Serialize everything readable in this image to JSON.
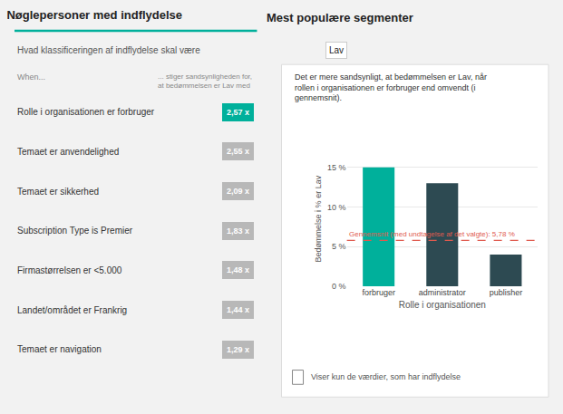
{
  "chart_data": {
    "type": "bar",
    "title": "Nøglepersoner med indflydelse",
    "subtitle": "Hvad klassificeringen af indflydelse skal være",
    "categories": [
      "forbruger",
      "administrator",
      "publisher"
    ],
    "values": [
      15.0,
      13.0,
      4.0
    ],
    "colors": [
      "#00b09b",
      "#2d4a52",
      "#2d4a52"
    ],
    "xlabel": "Rolle i organisationen",
    "ylabel": "Bedømmelse i % er Lav",
    "ylim": [
      0,
      17
    ],
    "yticks": [
      {
        "value": 0,
        "label": "0 %"
      },
      {
        "value": 5,
        "label": "5 %"
      },
      {
        "value": 10,
        "label": "10 %"
      },
      {
        "value": 15,
        "label": "15 %"
      }
    ],
    "grid": true,
    "annotations": [
      {
        "text": "Mest populære segmenter"
      },
      {
        "text": "Lav"
      },
      {
        "text": "When..."
      },
      {
        "text": "... stiger sandsynligheden for,\nat bedømmelsen er Lav med"
      },
      {
        "text": "Rolle i organisationen er forbruger",
        "label": "2,57 x",
        "color": "#00b09b"
      },
      {
        "text": "Temaet er anvendelighed",
        "label": "2,55 x",
        "color": "#b8b8b8"
      },
      {
        "text": "Temaet er sikkerhed",
        "label": "2,09 x",
        "color": "#b8b8b8"
      },
      {
        "text": "Subscription Type is Premier",
        "label": "1,83 x",
        "color": "#b8b8b8"
      },
      {
        "text": "Firmastørrelsen er <5.000",
        "label": "1,48 x",
        "color": "#b8b8b8"
      },
      {
        "text": "Landet/området er Frankrig",
        "label": "1,44 x",
        "color": "#b8b8b8"
      },
      {
        "text": "Temaet er navigation",
        "label": "1,29 x",
        "color": "#b8b8b8"
      },
      {
        "text": "Det er mere sandsynligt, at bedømmelsen er Lav, når\nrollen i organisationen er forbruger end omvendt (i\ngennemsnit)."
      },
      {
        "text": "Gennemsnit (med undtagelse af det valgte): 5,78 %",
        "y": 5.78,
        "color": "#e05a4e",
        "line_style": "dashed"
      },
      {
        "text": "Viser kun de værdier, som har indflydelse"
      }
    ]
  }
}
